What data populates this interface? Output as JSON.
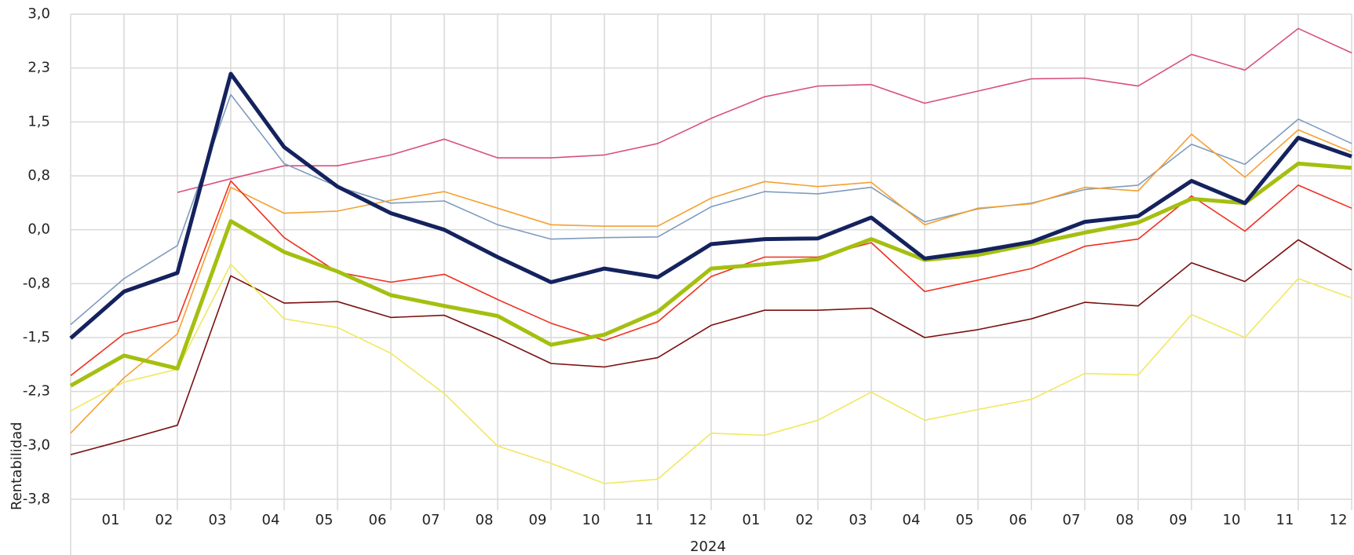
{
  "chart_data": {
    "type": "line",
    "y_label": "Rentabilidad",
    "x_group_label": "2024",
    "categories": [
      null,
      "01",
      "02",
      "03",
      "04",
      "05",
      "06",
      "07",
      "08",
      "09",
      "10",
      "11",
      "12",
      "01",
      "02",
      "03",
      "04",
      "05",
      "06",
      "07",
      "08",
      "09",
      "10",
      "11",
      "12"
    ],
    "ylim": [
      -3.75,
      3
    ],
    "yticks": [
      {
        "value": 3,
        "label": "3,0"
      },
      {
        "value": 2.25,
        "label": "2,3"
      },
      {
        "value": 1.5,
        "label": "1,5"
      },
      {
        "value": 0.75,
        "label": "0,8"
      },
      {
        "value": 0,
        "label": "0,0"
      },
      {
        "value": -0.75,
        "label": "-0,8"
      },
      {
        "value": -1.5,
        "label": "-1,5"
      },
      {
        "value": -2.25,
        "label": "-2,3"
      },
      {
        "value": -3,
        "label": "-3,0"
      },
      {
        "value": -3.75,
        "label": "-3,8"
      }
    ],
    "grid": true,
    "series": [
      {
        "color": "#d94f7f",
        "line_width": 1.6,
        "values": [
          null,
          null,
          0.52,
          0.71,
          0.89,
          0.89,
          1.04,
          1.26,
          1.0,
          1.0,
          1.04,
          1.2,
          1.55,
          1.85,
          2.0,
          2.02,
          1.76,
          1.93,
          2.1,
          2.11,
          2.0,
          2.44,
          2.22,
          2.8,
          2.46
        ]
      },
      {
        "color": "#7f9bbf",
        "line_width": 1.6,
        "values": [
          -1.32,
          -0.68,
          -0.22,
          1.88,
          0.92,
          0.6,
          0.37,
          0.4,
          0.07,
          -0.13,
          -0.11,
          -0.1,
          0.32,
          0.53,
          0.5,
          0.59,
          0.11,
          0.29,
          0.37,
          0.56,
          0.62,
          1.19,
          0.91,
          1.54,
          1.2
        ]
      },
      {
        "color": "#f5a030",
        "line_width": 1.6,
        "values": [
          -2.83,
          -2.06,
          -1.45,
          0.59,
          0.23,
          0.26,
          0.41,
          0.53,
          0.3,
          0.07,
          0.05,
          0.05,
          0.44,
          0.67,
          0.6,
          0.66,
          0.07,
          0.3,
          0.36,
          0.59,
          0.54,
          1.33,
          0.73,
          1.39,
          1.08
        ]
      },
      {
        "color": "#f03020",
        "line_width": 1.6,
        "values": [
          -2.03,
          -1.45,
          -1.27,
          0.68,
          -0.11,
          -0.59,
          -0.73,
          -0.62,
          -0.97,
          -1.3,
          -1.54,
          -1.28,
          -0.65,
          -0.38,
          -0.38,
          -0.18,
          -0.86,
          -0.7,
          -0.54,
          -0.23,
          -0.13,
          0.47,
          -0.02,
          0.62,
          0.3
        ]
      },
      {
        "color": "#7a1010",
        "line_width": 1.6,
        "values": [
          -3.13,
          -2.93,
          -2.72,
          -0.64,
          -1.02,
          -1.0,
          -1.22,
          -1.19,
          -1.51,
          -1.86,
          -1.91,
          -1.78,
          -1.33,
          -1.12,
          -1.12,
          -1.09,
          -1.5,
          -1.39,
          -1.24,
          -1.01,
          -1.06,
          -0.46,
          -0.72,
          -0.14,
          -0.56
        ]
      },
      {
        "color": "#f0e860",
        "line_width": 1.6,
        "values": [
          -2.52,
          -2.12,
          -1.94,
          -0.48,
          -1.24,
          -1.36,
          -1.72,
          -2.28,
          -3.01,
          -3.25,
          -3.53,
          -3.47,
          -2.83,
          -2.86,
          -2.65,
          -2.26,
          -2.65,
          -2.5,
          -2.36,
          -2.0,
          -2.02,
          -1.18,
          -1.5,
          -0.68,
          -0.95
        ]
      },
      {
        "color": "#a5bf10",
        "line_width": 5,
        "values": [
          -2.17,
          -1.75,
          -1.93,
          0.12,
          -0.31,
          -0.58,
          -0.91,
          -1.06,
          -1.2,
          -1.6,
          -1.46,
          -1.14,
          -0.54,
          -0.48,
          -0.41,
          -0.13,
          -0.42,
          -0.35,
          -0.2,
          -0.04,
          0.1,
          0.43,
          0.37,
          0.92,
          0.86
        ]
      },
      {
        "color": "#14225e",
        "line_width": 5,
        "values": [
          -1.51,
          -0.86,
          -0.6,
          2.17,
          1.15,
          0.6,
          0.23,
          0.0,
          -0.38,
          -0.73,
          -0.54,
          -0.66,
          -0.2,
          -0.13,
          -0.12,
          0.17,
          -0.4,
          -0.3,
          -0.17,
          0.11,
          0.19,
          0.68,
          0.37,
          1.28,
          1.02
        ]
      }
    ]
  }
}
